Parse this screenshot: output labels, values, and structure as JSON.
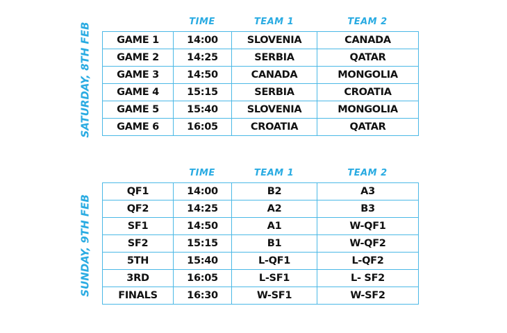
{
  "accent_color": "#29abe2",
  "schedules": [
    {
      "day": "SATURDAY, 8TH FEB",
      "headers": [
        "TIME",
        "TEAM 1",
        "TEAM 2"
      ],
      "rows": [
        [
          "GAME 1",
          "14:00",
          "SLOVENIA",
          "CANADA"
        ],
        [
          "GAME 2",
          "14:25",
          "SERBIA",
          "QATAR"
        ],
        [
          "GAME 3",
          "14:50",
          "CANADA",
          "MONGOLIA"
        ],
        [
          "GAME 4",
          "15:15",
          "SERBIA",
          "CROATIA"
        ],
        [
          "GAME 5",
          "15:40",
          "SLOVENIA",
          "MONGOLIA"
        ],
        [
          "GAME 6",
          "16:05",
          "CROATIA",
          "QATAR"
        ]
      ]
    },
    {
      "day": "SUNDAY, 9TH FEB",
      "headers": [
        "TIME",
        "TEAM 1",
        "TEAM 2"
      ],
      "rows": [
        [
          "QF1",
          "14:00",
          "B2",
          "A3"
        ],
        [
          "QF2",
          "14:25",
          "A2",
          "B3"
        ],
        [
          "SF1",
          "14:50",
          "A1",
          "W-QF1"
        ],
        [
          "SF2",
          "15:15",
          "B1",
          "W-QF2"
        ],
        [
          "5TH",
          "15:40",
          "L-QF1",
          "L-QF2"
        ],
        [
          "3RD",
          "16:05",
          "L-SF1",
          "L- SF2"
        ],
        [
          "FINALS",
          "16:30",
          "W-SF1",
          "W-SF2"
        ]
      ]
    }
  ]
}
